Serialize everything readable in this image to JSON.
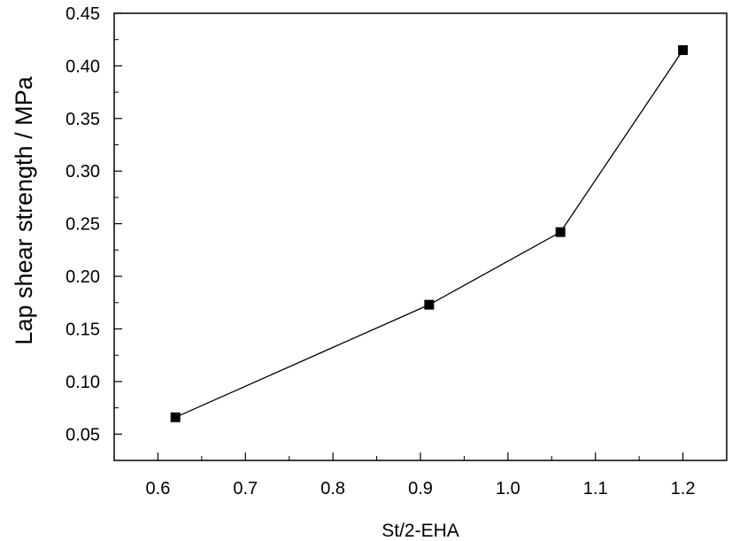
{
  "chart_data": {
    "type": "line",
    "title": "",
    "xlabel": "St/2-EHA",
    "ylabel": "Lap shear strength  / MPa",
    "xlim": [
      0.55,
      1.25
    ],
    "ylim": [
      0.025,
      0.45
    ],
    "x_ticks": [
      "0.6",
      "0.7",
      "0.8",
      "0.9",
      "1.0",
      "1.1",
      "1.2"
    ],
    "y_ticks": [
      "0.05",
      "0.10",
      "0.15",
      "0.20",
      "0.25",
      "0.30",
      "0.35",
      "0.40",
      "0.45"
    ],
    "grid": false,
    "legend": "none",
    "marker": "square",
    "color": "#000000",
    "series": [
      {
        "x": [
          0.62,
          0.91,
          1.06,
          1.2
        ],
        "y": [
          0.066,
          0.173,
          0.242,
          0.415
        ]
      }
    ]
  }
}
